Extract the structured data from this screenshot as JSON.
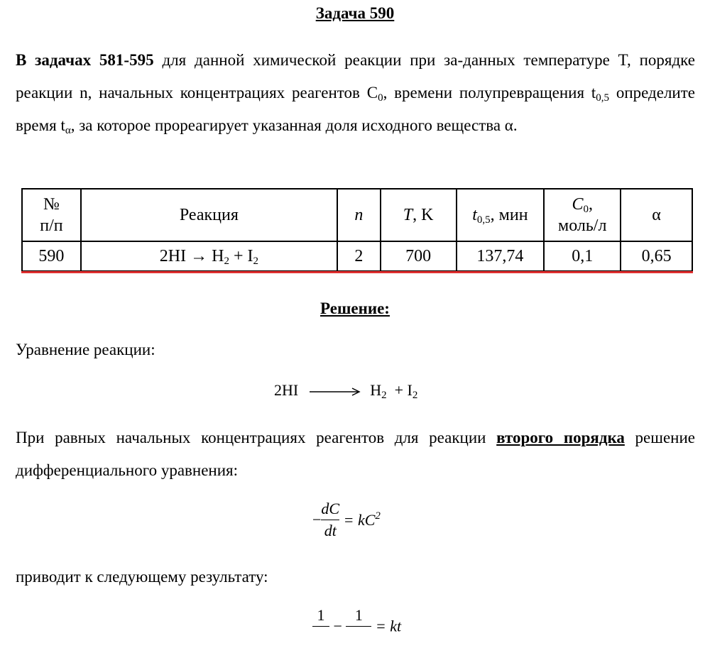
{
  "title": "Задача 590",
  "intro": {
    "lead": "В задачах 581-595",
    "text1": " для данной химической реакции при за-данных температуре T, порядке реакции n, начальных концентрациях реагентов C",
    "sub1": "0",
    "text2": ", времени полупревращения t",
    "sub2": "0,5",
    "text3": " определите время t",
    "sub3": "α",
    "text4": ", за которое прореагирует указанная доля исходного вещества α."
  },
  "table": {
    "header": {
      "num": [
        "№",
        "п/п"
      ],
      "reaction": "Реакция",
      "n": "n",
      "T": "T",
      "T_unit": ", K",
      "t": "t",
      "t_sub": "0,5",
      "t_unit": ", мин",
      "c": "C",
      "c_sub": "0",
      "c_unit": ",",
      "c_unit2": "моль/л",
      "alpha": "α"
    },
    "row": {
      "num": "590",
      "reaction": "2HI → H",
      "r_sub1": "2",
      "reaction2": " + I",
      "r_sub2": "2",
      "n": "2",
      "T": "700",
      "t": "137,74",
      "c": "0,1",
      "alpha": "0,65"
    }
  },
  "solution_heading": "Решение:",
  "eq_label": "Уравнение реакции:",
  "equation": {
    "left": "2HI",
    "h": "H",
    "h_sub": "2",
    "plus": "+ I",
    "i_sub": "2"
  },
  "para2": {
    "text1": "При равных начальных концентрациях реагентов для реакции ",
    "bold": "второго порядка",
    "text2": " решение дифференциального уравнения:"
  },
  "rate_eq": {
    "minus": "−",
    "num": "dC",
    "den": "dt",
    "rhs": "= kC",
    "sup": "2"
  },
  "para3": "приводит к следующему результату:",
  "result": {
    "num1": "1",
    "minus": "−",
    "num2": "1",
    "rhs": "= kt"
  }
}
